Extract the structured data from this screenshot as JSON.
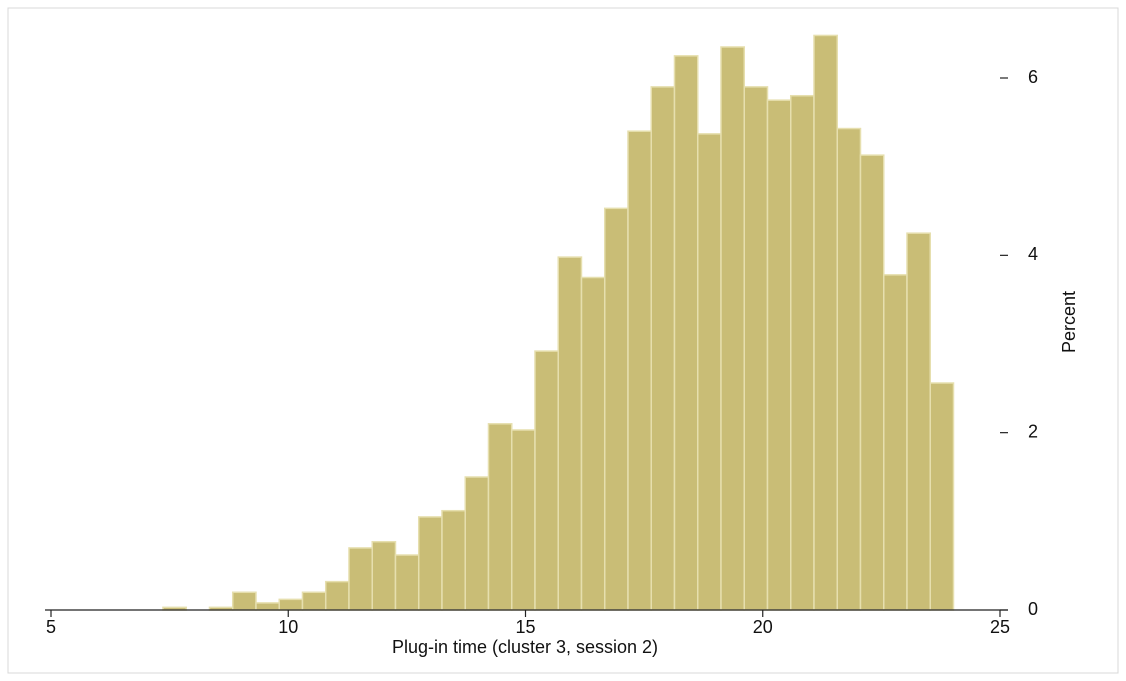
{
  "chart_data": {
    "type": "histogram",
    "x_label": "Plug-in time (cluster 3, session 2)",
    "y_label": "Percent",
    "bins": [
      7.36,
      7.85,
      8.34,
      8.83,
      9.32,
      9.81,
      10.3,
      10.79,
      11.28,
      11.77,
      12.26,
      12.75,
      13.24,
      13.73,
      14.22,
      14.71,
      15.2,
      15.69,
      16.18,
      16.67,
      17.16,
      17.65,
      18.14,
      18.63,
      19.12,
      19.61,
      20.1,
      20.59,
      21.08,
      21.57,
      22.06,
      22.55,
      23.04,
      23.53,
      24.02
    ],
    "values": [
      0.03,
      0,
      0.03,
      0.2,
      0.08,
      0.12,
      0.2,
      0.32,
      0.7,
      0.77,
      0.62,
      1.05,
      1.12,
      1.5,
      2.1,
      2.03,
      2.92,
      3.98,
      3.75,
      4.53,
      5.4,
      5.9,
      6.25,
      5.37,
      6.35,
      5.9,
      5.75,
      5.8,
      6.48,
      5.43,
      5.13,
      3.78,
      4.25,
      2.56
    ],
    "color": "#c9bd76",
    "xlim": [
      5,
      25
    ],
    "xticks": [
      5,
      10,
      15,
      20,
      25
    ],
    "ylim": [
      0,
      6.6
    ],
    "yticks": [
      0,
      2,
      4,
      6
    ],
    "y_axis_side": "right"
  }
}
